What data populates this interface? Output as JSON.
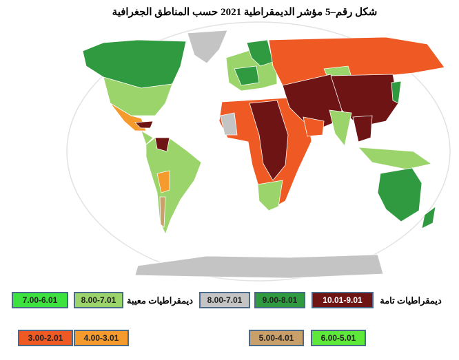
{
  "title": "شكل رقم–5 مؤشر الديمقراطية 2021 حسب المناطق الجغرافية",
  "legend": [
    {
      "label": "7.00-6.01",
      "color": "#3ee23e"
    },
    {
      "label": "8.00-7.01",
      "color": "#9bd46a"
    },
    {
      "label": "8.00-7.01",
      "color": "#c4c4c4"
    },
    {
      "label": "9.00-8.01",
      "color": "#2f9a3f"
    },
    {
      "label": "10.01-9.01",
      "color": "#6e1414"
    },
    {
      "label": "3.00-2.01",
      "color": "#ef5a24"
    },
    {
      "label": "4.00-3.01",
      "color": "#f59a2c"
    },
    {
      "label": "5.00-4.01",
      "color": "#c9a06a"
    },
    {
      "label": "6.00-5.01",
      "color": "#5de83a"
    }
  ],
  "group_labels": [
    "ديمقراطيات معيبة",
    "ديمقراطيات تامة"
  ]
}
